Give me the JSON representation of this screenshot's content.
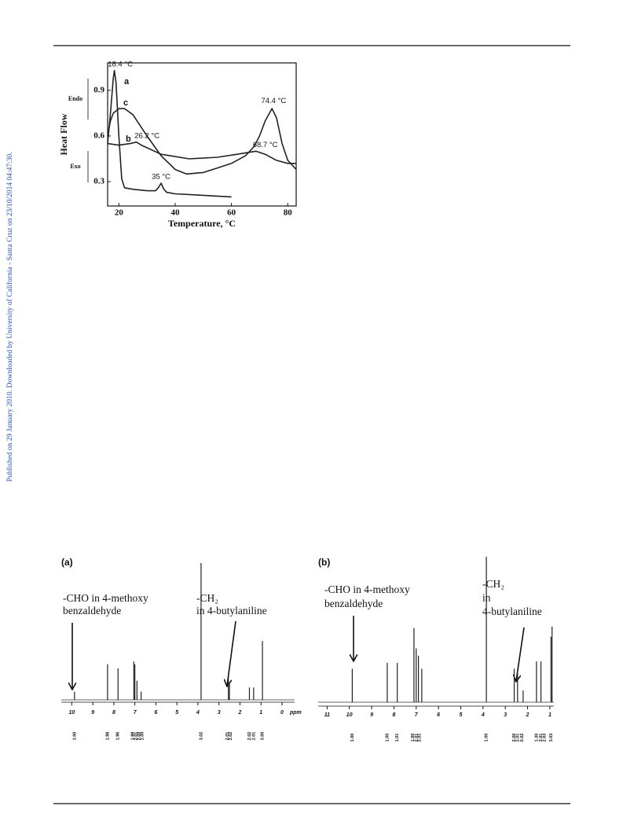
{
  "side_note": "Published on 29 January 2010. Downloaded by University of California - Santa Cruz on 23/10/2014 04:47:30.",
  "chart_data": [
    {
      "type": "line",
      "xlabel": "Temperature, °C",
      "ylabel": "Heat Flow",
      "endo_label": "Endo",
      "exo_label": "Exo",
      "xlim": [
        16,
        83
      ],
      "ylim": [
        0.14,
        1.08
      ],
      "xticks": [
        20,
        40,
        60,
        80
      ],
      "yticks": [
        0.3,
        0.6,
        0.9
      ],
      "series": [
        {
          "name": "a",
          "color": "#222222",
          "x": [
            16,
            17,
            18,
            18.4,
            19,
            20,
            21,
            22,
            25,
            30,
            33,
            34,
            35,
            36,
            37,
            40,
            50,
            60
          ],
          "values": [
            0.55,
            0.75,
            0.98,
            1.03,
            0.95,
            0.6,
            0.32,
            0.26,
            0.25,
            0.24,
            0.24,
            0.26,
            0.29,
            0.25,
            0.23,
            0.22,
            0.21,
            0.2
          ]
        },
        {
          "name": "b",
          "color": "#222222",
          "x": [
            16,
            20,
            24,
            26.2,
            28,
            35,
            45,
            55,
            62,
            68.7,
            72,
            76,
            80,
            83
          ],
          "values": [
            0.55,
            0.54,
            0.55,
            0.56,
            0.54,
            0.48,
            0.45,
            0.46,
            0.48,
            0.5,
            0.48,
            0.44,
            0.42,
            0.42
          ]
        },
        {
          "name": "c",
          "color": "#222222",
          "x": [
            16,
            17,
            18,
            20,
            22,
            25,
            30,
            35,
            40,
            44,
            50,
            55,
            60,
            65,
            68,
            70,
            72,
            74.4,
            76,
            78,
            80,
            83
          ],
          "values": [
            0.6,
            0.7,
            0.75,
            0.78,
            0.78,
            0.74,
            0.6,
            0.47,
            0.38,
            0.35,
            0.36,
            0.39,
            0.42,
            0.47,
            0.53,
            0.6,
            0.7,
            0.78,
            0.72,
            0.55,
            0.44,
            0.38
          ]
        }
      ],
      "annotations": [
        {
          "text": "18.4 °C",
          "x": 20.5,
          "y": 1.07
        },
        {
          "text": "26.2 °C",
          "x": 30,
          "y": 0.6
        },
        {
          "text": "35 °C",
          "x": 35,
          "y": 0.33
        },
        {
          "text": "68.7 °C",
          "x": 72,
          "y": 0.54
        },
        {
          "text": "74.4 °C",
          "x": 75,
          "y": 0.83
        }
      ]
    },
    {
      "type": "spectrum",
      "panel": "(a)",
      "xlabel": "ppm",
      "xlim": [
        10.5,
        -0.6
      ],
      "xticks": [
        10,
        9,
        8,
        7,
        6,
        5,
        4,
        3,
        2,
        1,
        0
      ],
      "x": [
        9.87,
        8.3,
        7.8,
        7.05,
        7.0,
        6.9,
        6.7,
        3.85,
        2.55,
        2.5,
        1.55,
        1.35,
        0.93
      ],
      "values": [
        6,
        26,
        23,
        28,
        26,
        14,
        6,
        100,
        17,
        12,
        9,
        9,
        43
      ],
      "annotations": [
        {
          "lines": [
            "-CHO in 4-methoxy",
            "benzaldehyde"
          ]
        },
        {
          "lines": [
            "-CH₂",
            "in 4-butylaniline"
          ]
        }
      ],
      "integrals": {
        "x": [
          9.87,
          8.3,
          7.8,
          7.1,
          6.95,
          6.8,
          6.65,
          3.85,
          2.6,
          2.45,
          1.55,
          1.35,
          0.93
        ],
        "labels": [
          "1.00",
          "1.98",
          "1.96",
          "1.99",
          "2.01",
          "2.00",
          "1.00",
          "3.02",
          "2.01",
          "2.02",
          "2.02",
          "2.01",
          "3.00"
        ]
      }
    },
    {
      "type": "spectrum",
      "panel": "(b)",
      "xlabel": "",
      "xlim": [
        11.4,
        0.82
      ],
      "xticks": [
        11,
        10,
        9,
        8,
        7,
        6,
        5,
        4,
        3,
        2,
        1
      ],
      "x": [
        9.87,
        8.3,
        7.85,
        7.1,
        7.0,
        6.9,
        6.75,
        3.85,
        2.6,
        2.45,
        2.2,
        1.6,
        1.4,
        0.95,
        0.9
      ],
      "values": [
        23,
        27,
        27,
        51,
        37,
        32,
        23,
        100,
        23,
        22,
        8,
        28,
        28,
        45,
        52
      ],
      "annotations": [
        {
          "lines": [
            "-CHO in 4-methoxy",
            "benzaldehyde"
          ]
        },
        {
          "lines": [
            "-CH₂",
            "in",
            "4-butylaniline"
          ]
        }
      ],
      "integrals": {
        "x": [
          9.87,
          8.3,
          7.85,
          7.15,
          7.0,
          6.85,
          3.85,
          2.6,
          2.45,
          2.25,
          1.6,
          1.4,
          1.25,
          0.95
        ],
        "labels": [
          "1.00",
          "1.00",
          "1.01",
          "1.00",
          "2.01",
          "2.01",
          "1.00",
          "2.00",
          "2.01",
          "0.02",
          "1.30",
          "3.01",
          "2.03",
          "3.03"
        ]
      }
    }
  ]
}
